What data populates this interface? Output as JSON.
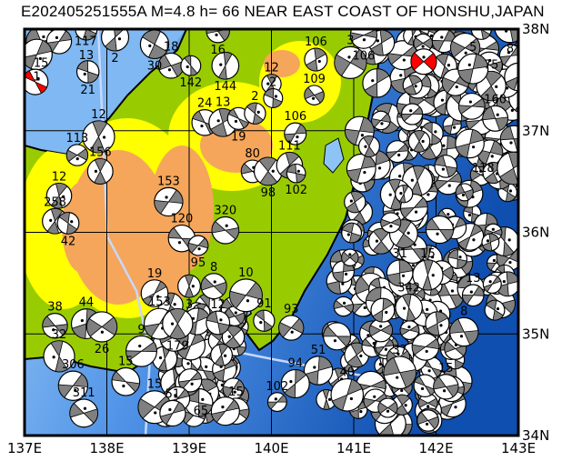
{
  "title": "E202405251555A  M=4.8  h= 66  NEAR EAST COAST OF HONSHU,JAPAN",
  "map": {
    "lon_range": [
      137,
      143
    ],
    "lat_range": [
      34,
      38
    ],
    "lon_ticks": [
      "137E",
      "138E",
      "139E",
      "140E",
      "141E",
      "142E",
      "143E"
    ],
    "lat_ticks": [
      "38N",
      "37N",
      "36N",
      "35N",
      "34N"
    ],
    "colors": {
      "ocean_shallow": "#9cccf8",
      "ocean_deep": "#0f4fb0",
      "lowland": "#99cc00",
      "hills": "#ffff00",
      "mountains": "#f5a65b",
      "mechanism_fill": "#808080",
      "main_event": "#ff0000",
      "trench_line": "#c8d8ff"
    }
  },
  "main_events": [
    {
      "lon": 137.13,
      "lat": 37.48,
      "depth": "12"
    },
    {
      "lon": 141.85,
      "lat": 37.68,
      "depth": "66"
    }
  ],
  "events": [
    {
      "lon": 137.2,
      "lat": 37.88,
      "depth": "15"
    },
    {
      "lon": 137.42,
      "lat": 37.88,
      "depth": "117"
    },
    {
      "lon": 137.75,
      "lat": 38.0,
      "depth": "13"
    },
    {
      "lon": 138.1,
      "lat": 37.92,
      "depth": "2"
    },
    {
      "lon": 137.77,
      "lat": 37.58,
      "depth": "21"
    },
    {
      "lon": 137.15,
      "lat": 37.75,
      "depth": "1"
    },
    {
      "lon": 138.58,
      "lat": 37.85,
      "depth": "30"
    },
    {
      "lon": 138.78,
      "lat": 37.64,
      "depth": "18"
    },
    {
      "lon": 139.02,
      "lat": 37.64,
      "depth": "142"
    },
    {
      "lon": 139.35,
      "lat": 37.98,
      "depth": "16"
    },
    {
      "lon": 139.44,
      "lat": 37.64,
      "depth": "144"
    },
    {
      "lon": 140.0,
      "lat": 37.46,
      "depth": "12"
    },
    {
      "lon": 140.54,
      "lat": 37.7,
      "depth": "106"
    },
    {
      "lon": 140.96,
      "lat": 37.67,
      "depth": "3"
    },
    {
      "lon": 141.12,
      "lat": 37.94,
      "depth": "106"
    },
    {
      "lon": 140.52,
      "lat": 37.35,
      "depth": "109"
    },
    {
      "lon": 139.19,
      "lat": 37.08,
      "depth": "24"
    },
    {
      "lon": 139.41,
      "lat": 37.08,
      "depth": "13"
    },
    {
      "lon": 139.6,
      "lat": 37.12,
      "depth": "19"
    },
    {
      "lon": 139.8,
      "lat": 37.17,
      "depth": "2"
    },
    {
      "lon": 140.02,
      "lat": 37.32,
      "depth": "2"
    },
    {
      "lon": 140.29,
      "lat": 36.97,
      "depth": "106"
    },
    {
      "lon": 137.9,
      "lat": 36.94,
      "depth": "12"
    },
    {
      "lon": 137.64,
      "lat": 36.76,
      "depth": "113"
    },
    {
      "lon": 137.92,
      "lat": 36.6,
      "depth": "156"
    },
    {
      "lon": 137.42,
      "lat": 36.36,
      "depth": "12"
    },
    {
      "lon": 137.37,
      "lat": 36.11,
      "depth": "258"
    },
    {
      "lon": 137.53,
      "lat": 36.09,
      "depth": "42"
    },
    {
      "lon": 138.75,
      "lat": 36.3,
      "depth": "153"
    },
    {
      "lon": 138.91,
      "lat": 35.94,
      "depth": "120"
    },
    {
      "lon": 139.11,
      "lat": 35.87,
      "depth": "95"
    },
    {
      "lon": 139.44,
      "lat": 36.02,
      "depth": "320"
    },
    {
      "lon": 139.77,
      "lat": 36.6,
      "depth": "80"
    },
    {
      "lon": 139.96,
      "lat": 36.6,
      "depth": "98"
    },
    {
      "lon": 140.22,
      "lat": 36.66,
      "depth": "111"
    },
    {
      "lon": 140.3,
      "lat": 36.58,
      "depth": "102"
    },
    {
      "lon": 138.58,
      "lat": 35.4,
      "depth": "19"
    },
    {
      "lon": 137.37,
      "lat": 35.08,
      "depth": "38"
    },
    {
      "lon": 137.75,
      "lat": 35.1,
      "depth": "44"
    },
    {
      "lon": 137.94,
      "lat": 35.07,
      "depth": "26"
    },
    {
      "lon": 137.42,
      "lat": 34.78,
      "depth": "32"
    },
    {
      "lon": 137.59,
      "lat": 34.49,
      "depth": "306"
    },
    {
      "lon": 137.72,
      "lat": 34.22,
      "depth": "311"
    },
    {
      "lon": 138.42,
      "lat": 34.83,
      "depth": "9"
    },
    {
      "lon": 138.23,
      "lat": 34.53,
      "depth": "15"
    },
    {
      "lon": 138.58,
      "lat": 34.28,
      "depth": "15"
    },
    {
      "lon": 138.8,
      "lat": 34.22,
      "depth": "51"
    },
    {
      "lon": 138.64,
      "lat": 35.1,
      "depth": "153"
    },
    {
      "lon": 138.86,
      "lat": 35.1,
      "depth": "179"
    },
    {
      "lon": 140.07,
      "lat": 34.33,
      "depth": "102"
    },
    {
      "lon": 140.92,
      "lat": 34.4,
      "depth": "40"
    },
    {
      "lon": 140.57,
      "lat": 34.64,
      "depth": "51"
    },
    {
      "lon": 140.29,
      "lat": 34.51,
      "depth": "94"
    },
    {
      "lon": 139.57,
      "lat": 34.24,
      "depth": "15"
    },
    {
      "lon": 139.44,
      "lat": 34.24,
      "depth": "65"
    },
    {
      "lon": 139.0,
      "lat": 35.47,
      "depth": "3"
    },
    {
      "lon": 139.3,
      "lat": 35.47,
      "depth": "8"
    },
    {
      "lon": 139.69,
      "lat": 35.38,
      "depth": "10"
    },
    {
      "lon": 141.9,
      "lat": 35.58,
      "depth": "15"
    },
    {
      "lon": 141.56,
      "lat": 35.6,
      "depth": "31"
    },
    {
      "lon": 141.67,
      "lat": 35.26,
      "depth": "342"
    },
    {
      "lon": 142.45,
      "lat": 35.38,
      "depth": "13"
    },
    {
      "lon": 142.34,
      "lat": 35.02,
      "depth": "8"
    },
    {
      "lon": 142.72,
      "lat": 37.12,
      "depth": "160"
    },
    {
      "lon": 142.67,
      "lat": 37.44,
      "depth": "75"
    },
    {
      "lon": 142.45,
      "lat": 37.61,
      "depth": "5"
    },
    {
      "lon": 143.0,
      "lat": 37.53,
      "depth": "8"
    },
    {
      "lon": 142.94,
      "lat": 36.63,
      "depth": "118"
    },
    {
      "lon": 141.56,
      "lat": 34.62,
      "depth": "37"
    },
    {
      "lon": 142.12,
      "lat": 34.48,
      "depth": "15"
    },
    {
      "lon": 139.35,
      "lat": 35.11,
      "depth": "12"
    },
    {
      "lon": 139.91,
      "lat": 35.13,
      "depth": "91"
    },
    {
      "lon": 140.24,
      "lat": 35.06,
      "depth": "93"
    }
  ]
}
